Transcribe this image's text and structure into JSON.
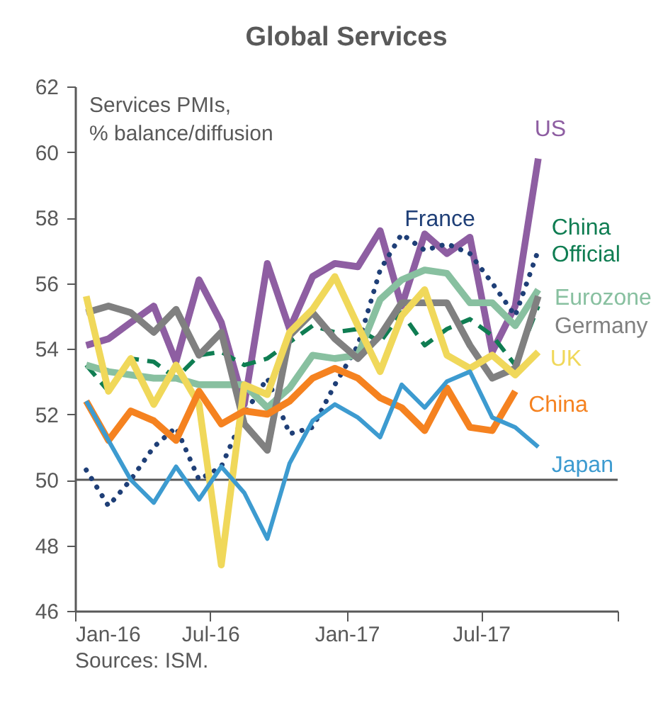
{
  "chart_data": {
    "type": "line",
    "title": "Global Services",
    "ylabel": "Services PMIs,\n% balance/diffusion",
    "x": [
      "2016-01-16",
      "2016-02-15",
      "2016-03-16",
      "2016-04-16",
      "2016-05-16",
      "2016-06-16",
      "2016-07-16",
      "2016-08-16",
      "2016-09-16",
      "2016-10-16",
      "2016-11-16",
      "2016-12-16",
      "2017-01-16",
      "2017-02-15",
      "2017-03-16",
      "2017-04-16",
      "2017-05-16",
      "2017-06-16",
      "2017-07-16",
      "2017-08-16",
      "2017-09-16"
    ],
    "series": [
      {
        "name": "US",
        "color": "#8e5ea2",
        "values": [
          54.1,
          54.3,
          54.8,
          55.3,
          53.6,
          56.1,
          54.8,
          52.3,
          56.6,
          54.6,
          56.2,
          56.6,
          56.5,
          57.6,
          55.3,
          57.5,
          56.9,
          57.4,
          53.9,
          55.3,
          59.8
        ]
      },
      {
        "name": "France",
        "color": "#1f3f77",
        "line_style": "dotted",
        "values": [
          50.3,
          49.2,
          50.0,
          51.0,
          51.6,
          50.0,
          50.4,
          52.0,
          53.1,
          51.4,
          51.6,
          52.9,
          54.1,
          56.4,
          57.5,
          57.0,
          57.2,
          56.9,
          56.0,
          55.0,
          57.0
        ]
      },
      {
        "name": "China\nOfficial",
        "color": "#0f7d52",
        "line_style": "dashed",
        "values": [
          53.5,
          52.7,
          53.7,
          53.6,
          53.1,
          53.8,
          53.9,
          53.5,
          53.7,
          54.2,
          54.7,
          54.5,
          54.6,
          54.2,
          55.1,
          54.1,
          54.6,
          54.9,
          54.4,
          53.5,
          55.3
        ]
      },
      {
        "name": "Eurozone",
        "color": "#88c0a0",
        "values": [
          53.5,
          53.3,
          53.2,
          53.1,
          53.1,
          52.9,
          52.9,
          52.9,
          52.2,
          52.8,
          53.8,
          53.7,
          53.8,
          55.5,
          56.1,
          56.4,
          56.3,
          55.4,
          55.4,
          54.7,
          55.8
        ]
      },
      {
        "name": "Germany",
        "color": "#808080",
        "values": [
          55.1,
          55.3,
          55.1,
          54.5,
          55.2,
          53.8,
          54.5,
          51.7,
          50.9,
          54.4,
          55.1,
          54.3,
          53.7,
          54.4,
          55.4,
          55.4,
          55.4,
          54.1,
          53.1,
          53.4,
          55.6
        ]
      },
      {
        "name": "UK",
        "color": "#f0d85a",
        "values": [
          55.6,
          52.7,
          53.7,
          52.3,
          53.5,
          52.3,
          47.4,
          52.9,
          52.6,
          54.5,
          55.2,
          56.2,
          54.7,
          53.3,
          55.0,
          55.8,
          53.8,
          53.4,
          53.8,
          53.2,
          53.9
        ]
      },
      {
        "name": "China",
        "color": "#f58220",
        "values": [
          52.4,
          51.2,
          52.1,
          51.8,
          51.2,
          52.7,
          51.7,
          52.1,
          52.0,
          52.4,
          53.1,
          53.4,
          53.1,
          52.5,
          52.2,
          51.5,
          52.8,
          51.6,
          51.5,
          52.7,
          null
        ]
      },
      {
        "name": "Japan",
        "color": "#3d9bd0",
        "values": [
          52.4,
          51.2,
          50.0,
          49.3,
          50.4,
          49.4,
          50.4,
          49.6,
          48.2,
          50.5,
          51.8,
          52.3,
          51.9,
          51.3,
          52.9,
          52.2,
          53.0,
          53.3,
          51.9,
          51.6,
          51.0
        ]
      }
    ],
    "ylim": [
      46,
      62
    ],
    "yticks": [
      46,
      48,
      50,
      52,
      54,
      56,
      58,
      60,
      62
    ],
    "xlim": [
      "2016-01-01",
      "2018-01-01"
    ],
    "xticks": [
      {
        "value": "2016-01-01",
        "label": "Jan-16"
      },
      {
        "value": "2016-07-01",
        "label": "Jul-16"
      },
      {
        "value": "2017-01-01",
        "label": "Jan-17"
      },
      {
        "value": "2017-07-01",
        "label": "Jul-17"
      },
      {
        "value": "2018-01-01",
        "label": null
      }
    ],
    "ref_lines": [
      {
        "axis": "y",
        "value": 50,
        "color": "#595959"
      }
    ],
    "grid": false,
    "legend": false,
    "marker": "none",
    "annotations": [
      "Sources: ISM."
    ]
  }
}
